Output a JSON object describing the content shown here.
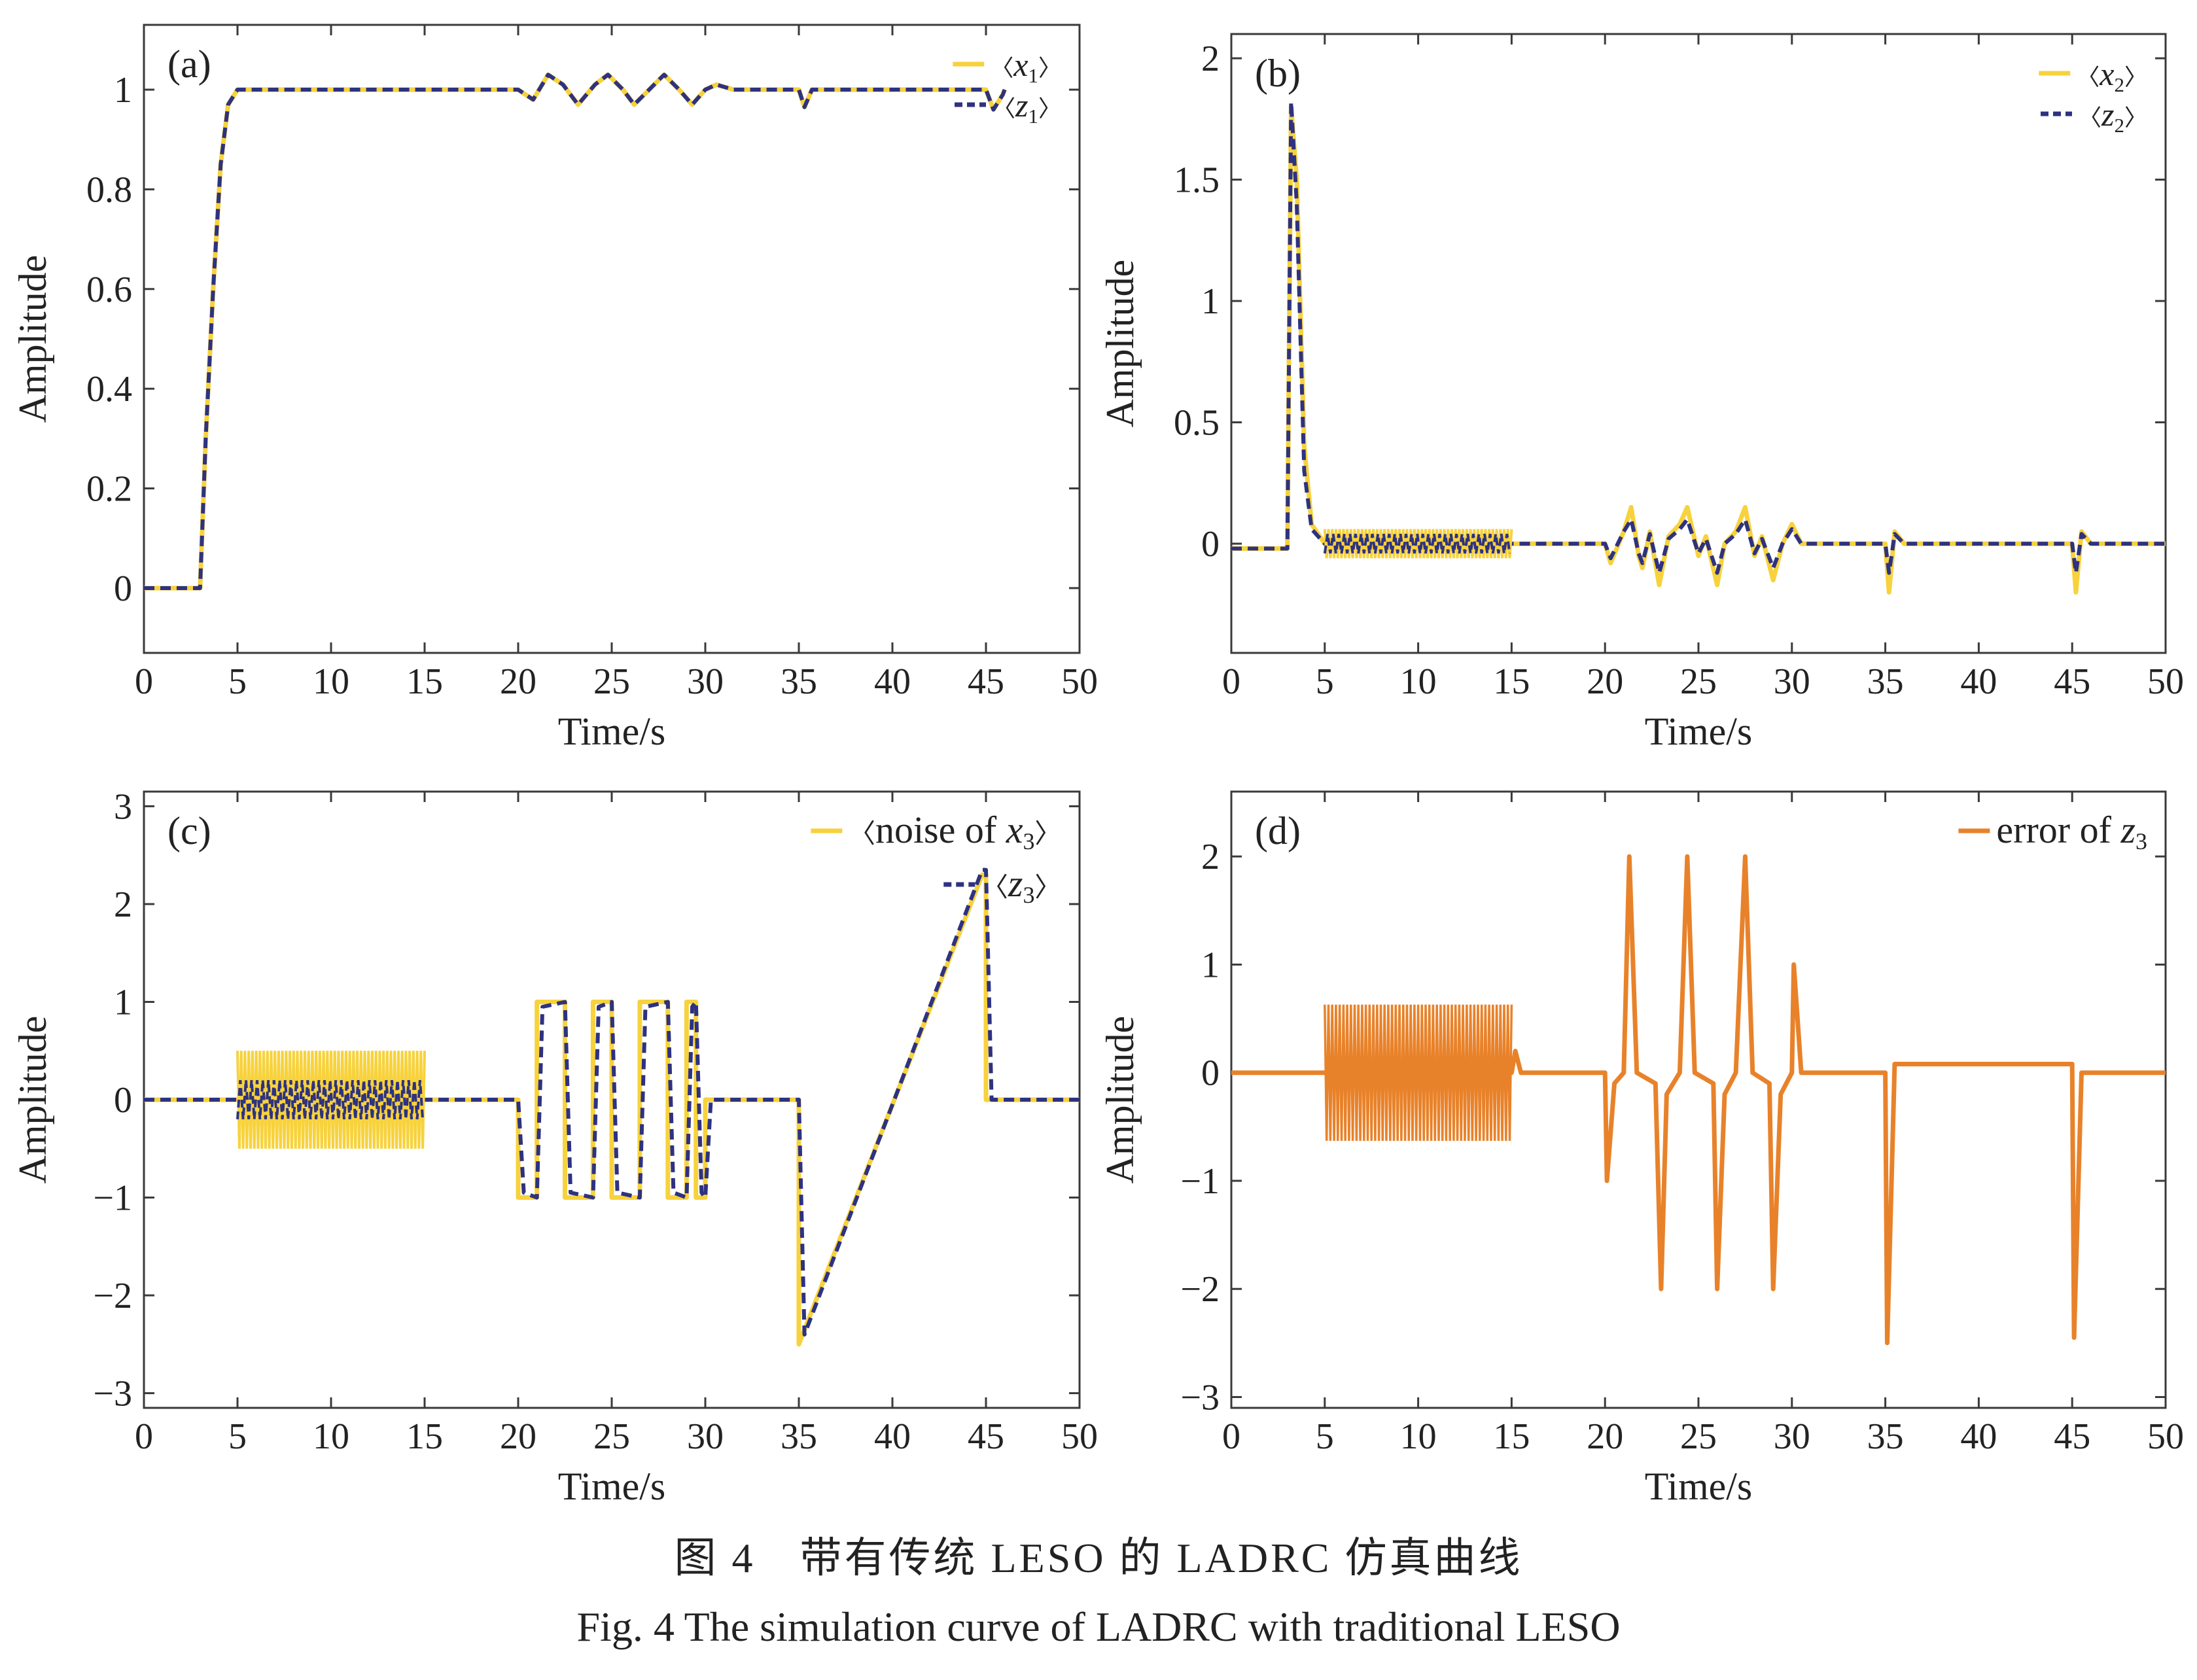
{
  "caption": {
    "chinese": "图 4　带有传统 LESO 的 LADRC 仿真曲线",
    "english": "Fig. 4  The simulation curve of LADRC with traditional LESO"
  },
  "colors": {
    "yellow": "#F7D23C",
    "navy": "#2E3280",
    "orange": "#E8822A",
    "frame": "#3a3a3a"
  },
  "chart_data": [
    {
      "panel": "(a)",
      "type": "line",
      "xlabel": "Time/s",
      "ylabel": "Amplitude",
      "xlim": [
        0,
        50
      ],
      "ylim": [
        -0.13,
        1.13
      ],
      "xticks": [
        0,
        5,
        10,
        15,
        20,
        25,
        30,
        35,
        40,
        45,
        50
      ],
      "yticks": [
        0,
        0.2,
        0.4,
        0.6,
        0.8,
        1
      ],
      "legend_position": "top-right",
      "series": [
        {
          "name": "x1",
          "style": "solid",
          "color": "yellow",
          "points": [
            [
              0,
              0
            ],
            [
              3,
              0
            ],
            [
              3.3,
              0.3
            ],
            [
              3.7,
              0.6
            ],
            [
              4.1,
              0.85
            ],
            [
              4.5,
              0.97
            ],
            [
              5,
              1.0
            ],
            [
              20,
              1.0
            ],
            [
              20.8,
              0.98
            ],
            [
              21.6,
              1.03
            ],
            [
              22.4,
              1.01
            ],
            [
              23.2,
              0.97
            ],
            [
              24.1,
              1.01
            ],
            [
              24.8,
              1.03
            ],
            [
              25.6,
              1.0
            ],
            [
              26.2,
              0.97
            ],
            [
              27,
              1.0
            ],
            [
              27.8,
              1.03
            ],
            [
              28.6,
              1.0
            ],
            [
              29.3,
              0.97
            ],
            [
              30,
              1.0
            ],
            [
              30.6,
              1.01
            ],
            [
              31.5,
              1.0
            ],
            [
              35,
              1.0
            ],
            [
              35.3,
              0.965
            ],
            [
              35.7,
              1.0
            ],
            [
              45,
              1.0
            ],
            [
              45.4,
              0.96
            ],
            [
              45.9,
              0.99
            ],
            [
              46,
              1.0
            ]
          ]
        },
        {
          "name": "z1",
          "style": "dashed",
          "color": "navy",
          "points": [
            [
              0,
              0
            ],
            [
              3,
              0
            ],
            [
              3.3,
              0.3
            ],
            [
              3.7,
              0.6
            ],
            [
              4.1,
              0.85
            ],
            [
              4.5,
              0.97
            ],
            [
              5,
              1.0
            ],
            [
              20,
              1.0
            ],
            [
              20.8,
              0.98
            ],
            [
              21.6,
              1.03
            ],
            [
              22.4,
              1.01
            ],
            [
              23.2,
              0.97
            ],
            [
              24.1,
              1.01
            ],
            [
              24.8,
              1.03
            ],
            [
              25.6,
              1.0
            ],
            [
              26.2,
              0.97
            ],
            [
              27,
              1.0
            ],
            [
              27.8,
              1.03
            ],
            [
              28.6,
              1.0
            ],
            [
              29.3,
              0.97
            ],
            [
              30,
              1.0
            ],
            [
              30.6,
              1.01
            ],
            [
              31.5,
              1.0
            ],
            [
              35,
              1.0
            ],
            [
              35.3,
              0.965
            ],
            [
              35.7,
              1.0
            ],
            [
              45,
              1.0
            ],
            [
              45.4,
              0.96
            ],
            [
              45.9,
              0.99
            ],
            [
              46,
              1.0
            ]
          ]
        }
      ]
    },
    {
      "panel": "(b)",
      "type": "line",
      "xlabel": "Time/s",
      "ylabel": "Amplitude",
      "xlim": [
        0,
        50
      ],
      "ylim": [
        -0.45,
        2.1
      ],
      "xticks": [
        0,
        5,
        10,
        15,
        20,
        25,
        30,
        35,
        40,
        45,
        50
      ],
      "yticks": [
        0,
        0.5,
        1,
        1.5,
        2
      ],
      "legend_position": "top-right",
      "series": [
        {
          "name": "x2",
          "style": "solid",
          "color": "yellow",
          "points": [
            [
              0,
              -0.02
            ],
            [
              3,
              -0.02
            ],
            [
              3.2,
              1.8
            ],
            [
              3.5,
              1.5
            ],
            [
              3.9,
              0.4
            ],
            [
              4.3,
              0.08
            ],
            [
              5,
              0
            ],
            [
              15,
              0
            ],
            [
              20,
              0
            ],
            [
              20.3,
              -0.08
            ],
            [
              21,
              0.05
            ],
            [
              21.4,
              0.15
            ],
            [
              21.8,
              -0.05
            ],
            [
              22,
              -0.1
            ],
            [
              22.4,
              0.05
            ],
            [
              22.9,
              -0.17
            ],
            [
              23.4,
              0.03
            ],
            [
              24,
              0.08
            ],
            [
              24.4,
              0.15
            ],
            [
              25,
              -0.05
            ],
            [
              25.4,
              0.03
            ],
            [
              26,
              -0.17
            ],
            [
              26.4,
              0.0
            ],
            [
              27,
              0.05
            ],
            [
              27.5,
              0.15
            ],
            [
              28,
              -0.05
            ],
            [
              28.4,
              0.03
            ],
            [
              29,
              -0.15
            ],
            [
              29.5,
              0.0
            ],
            [
              30,
              0.08
            ],
            [
              30.5,
              0.0
            ],
            [
              35,
              0
            ],
            [
              35.2,
              -0.2
            ],
            [
              35.5,
              0.05
            ],
            [
              36,
              0
            ],
            [
              45,
              0
            ],
            [
              45.2,
              -0.2
            ],
            [
              45.5,
              0.05
            ],
            [
              46,
              0
            ],
            [
              50,
              0
            ]
          ]
        },
        {
          "name": "z2",
          "style": "dashed",
          "color": "navy",
          "points": [
            [
              0,
              -0.02
            ],
            [
              3,
              -0.02
            ],
            [
              3.2,
              1.82
            ],
            [
              3.5,
              1.4
            ],
            [
              3.9,
              0.3
            ],
            [
              4.3,
              0.06
            ],
            [
              5,
              0
            ],
            [
              15,
              0
            ],
            [
              20,
              0
            ],
            [
              20.3,
              -0.06
            ],
            [
              21,
              0.05
            ],
            [
              21.4,
              0.1
            ],
            [
              21.8,
              -0.04
            ],
            [
              22,
              -0.08
            ],
            [
              22.4,
              0.04
            ],
            [
              22.9,
              -0.12
            ],
            [
              23.4,
              0.02
            ],
            [
              24,
              0.06
            ],
            [
              24.4,
              0.1
            ],
            [
              25,
              -0.04
            ],
            [
              25.4,
              0.02
            ],
            [
              26,
              -0.12
            ],
            [
              26.4,
              0.0
            ],
            [
              27,
              0.04
            ],
            [
              27.5,
              0.1
            ],
            [
              28,
              -0.04
            ],
            [
              28.4,
              0.02
            ],
            [
              29,
              -0.1
            ],
            [
              29.5,
              0.0
            ],
            [
              30,
              0.06
            ],
            [
              30.5,
              0.0
            ],
            [
              35,
              0
            ],
            [
              35.2,
              -0.12
            ],
            [
              35.5,
              0.04
            ],
            [
              36,
              0
            ],
            [
              45,
              0
            ],
            [
              45.2,
              -0.12
            ],
            [
              45.5,
              0.04
            ],
            [
              46,
              0
            ],
            [
              50,
              0
            ]
          ]
        }
      ]
    },
    {
      "panel": "(c)",
      "type": "line",
      "xlabel": "Time/s",
      "ylabel": "Amplitude",
      "xlim": [
        0,
        50
      ],
      "ylim": [
        -3.15,
        3.15
      ],
      "xticks": [
        0,
        5,
        10,
        15,
        20,
        25,
        30,
        35,
        40,
        45,
        50
      ],
      "yticks": [
        -3,
        -2,
        -1,
        0,
        1,
        2,
        3
      ],
      "legend_position": "top-right",
      "series": [
        {
          "name": "noise of x3",
          "style": "solid",
          "color": "yellow",
          "points": [
            [
              0,
              0
            ],
            [
              5,
              0
            ],
            [
              15,
              0
            ],
            [
              20,
              0
            ],
            [
              20,
              -1
            ],
            [
              21,
              -1
            ],
            [
              21,
              1
            ],
            [
              22.5,
              1
            ],
            [
              22.5,
              -1
            ],
            [
              24,
              -1
            ],
            [
              24,
              1
            ],
            [
              25,
              1
            ],
            [
              25,
              -1
            ],
            [
              26.5,
              -1
            ],
            [
              26.5,
              1
            ],
            [
              28,
              1
            ],
            [
              28,
              -1
            ],
            [
              29,
              -1
            ],
            [
              29,
              1
            ],
            [
              29.5,
              1
            ],
            [
              29.5,
              -1
            ],
            [
              30,
              -1
            ],
            [
              30,
              0
            ],
            [
              35,
              0
            ],
            [
              35,
              -2.5
            ],
            [
              44.8,
              2.3
            ],
            [
              45,
              2.3
            ],
            [
              45,
              0
            ],
            [
              50,
              0
            ]
          ]
        },
        {
          "name": "z3",
          "style": "dashed",
          "color": "navy",
          "points": [
            [
              0,
              0
            ],
            [
              5,
              0
            ],
            [
              15,
              0
            ],
            [
              20,
              0
            ],
            [
              20.3,
              -0.95
            ],
            [
              21,
              -1
            ],
            [
              21.3,
              0.95
            ],
            [
              22.5,
              1
            ],
            [
              22.8,
              -0.95
            ],
            [
              24,
              -1
            ],
            [
              24.3,
              0.95
            ],
            [
              25,
              1
            ],
            [
              25.3,
              -0.95
            ],
            [
              26.5,
              -1
            ],
            [
              26.8,
              0.95
            ],
            [
              28,
              1
            ],
            [
              28.3,
              -0.95
            ],
            [
              29,
              -1
            ],
            [
              29.3,
              0.95
            ],
            [
              29.5,
              1
            ],
            [
              29.8,
              -0.95
            ],
            [
              30,
              -1
            ],
            [
              30.3,
              0
            ],
            [
              35,
              0
            ],
            [
              35.3,
              -2.4
            ],
            [
              44.8,
              2.35
            ],
            [
              45,
              2.35
            ],
            [
              45.3,
              0
            ],
            [
              50,
              0
            ]
          ]
        }
      ]
    },
    {
      "panel": "(d)",
      "type": "line",
      "xlabel": "Time/s",
      "ylabel": "Amplitude",
      "xlim": [
        0,
        50
      ],
      "ylim": [
        -3.1,
        2.6
      ],
      "xticks": [
        0,
        5,
        10,
        15,
        20,
        25,
        30,
        35,
        40,
        45,
        50
      ],
      "yticks": [
        -3,
        -2,
        -1,
        0,
        1,
        2
      ],
      "legend_position": "top-right",
      "series": [
        {
          "name": "error of z3",
          "style": "solid",
          "color": "orange",
          "points": [
            [
              0,
              0
            ],
            [
              5,
              0
            ],
            [
              15,
              0
            ],
            [
              15.2,
              0.2
            ],
            [
              15.5,
              0
            ],
            [
              20,
              0
            ],
            [
              20.1,
              -1
            ],
            [
              20.5,
              -0.1
            ],
            [
              21,
              0
            ],
            [
              21.3,
              2.0
            ],
            [
              21.7,
              0
            ],
            [
              22.7,
              -0.1
            ],
            [
              23,
              -2.0
            ],
            [
              23.3,
              -0.2
            ],
            [
              24,
              0
            ],
            [
              24.4,
              2.0
            ],
            [
              24.8,
              0
            ],
            [
              25.8,
              -0.1
            ],
            [
              26,
              -2.0
            ],
            [
              26.4,
              -0.2
            ],
            [
              27,
              0
            ],
            [
              27.5,
              2.0
            ],
            [
              27.9,
              0
            ],
            [
              28.8,
              -0.1
            ],
            [
              29,
              -2.0
            ],
            [
              29.4,
              -0.2
            ],
            [
              30,
              0
            ],
            [
              30.1,
              1.0
            ],
            [
              30.5,
              0
            ],
            [
              35,
              0
            ],
            [
              35.1,
              -2.5
            ],
            [
              35.5,
              0.08
            ],
            [
              45,
              0.08
            ],
            [
              45.1,
              -2.45
            ],
            [
              45.5,
              0
            ],
            [
              50,
              0
            ]
          ]
        }
      ]
    }
  ],
  "noise_bursts": [
    {
      "panel": "(b)",
      "from": 5,
      "to": 15,
      "yellow_amplitude": 0.06,
      "navy_amplitude": 0.04
    },
    {
      "panel": "(c)",
      "from": 5,
      "to": 15,
      "yellow_amplitude": 0.5,
      "navy_amplitude": 0.2
    },
    {
      "panel": "(d)",
      "from": 5,
      "to": 15,
      "orange_amplitude": 0.63
    }
  ],
  "legends": {
    "a": [
      {
        "base": "x",
        "sub": "1"
      },
      {
        "base": "z",
        "sub": "1"
      }
    ],
    "b": [
      {
        "base": "x",
        "sub": "2"
      },
      {
        "base": "z",
        "sub": "2"
      }
    ],
    "c": [
      {
        "prefix": "noise of ",
        "base": "x",
        "sub": "3"
      },
      {
        "prefix": "",
        "base": "z",
        "sub": "3"
      }
    ],
    "d": [
      {
        "prefix": "error of ",
        "base": "z",
        "sub": "3"
      }
    ]
  }
}
